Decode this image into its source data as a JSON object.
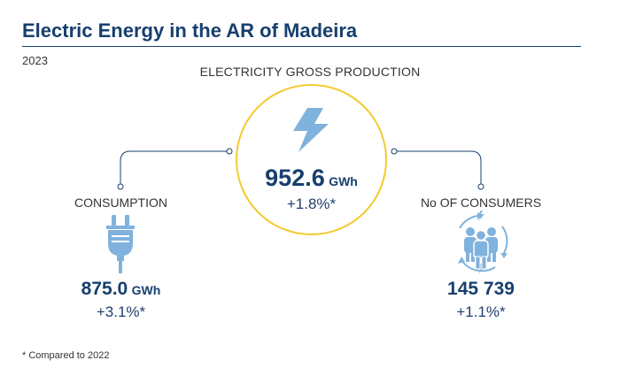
{
  "title": "Electric Energy in the AR of Madeira",
  "year": "2023",
  "production": {
    "label": "ELECTRICITY GROSS PRODUCTION",
    "value": "952.6",
    "unit": "GWh",
    "change": "+1.8%*"
  },
  "consumption": {
    "label": "CONSUMPTION",
    "value": "875.0",
    "unit": "GWh",
    "change": "+3.1%*"
  },
  "consumers": {
    "label": "No OF CONSUMERS",
    "value": "145 739",
    "change": "+1.1%*"
  },
  "footnote": "* Compared to 2022",
  "colors": {
    "title": "#173f6e",
    "accent_yellow": "#f3cb2e",
    "icon_blue": "#7fb2dc",
    "text_dark": "#333333"
  },
  "icons": [
    "lightning-icon",
    "plug-icon",
    "people-icon"
  ]
}
